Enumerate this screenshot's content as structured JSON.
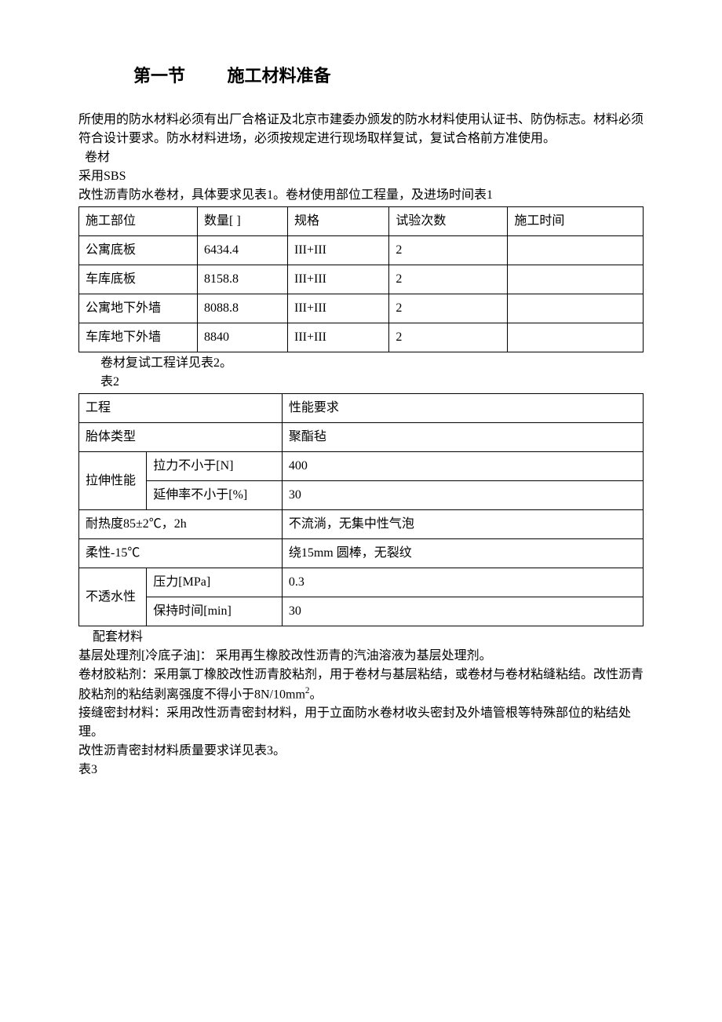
{
  "title_section": "第一节",
  "title_text": "施工材料准备",
  "intro": "所使用的防水材料必须有出厂合格证及北京市建委办颁发的防水材料使用认证书、防伪标志。材料必须符合设计要求。防水材料进场，必须按规定进行现场取样复试，复试合格前方准使用。",
  "label_juancai": "卷材",
  "label_sbs": "采用SBS",
  "label_sbs_desc": "改性沥青防水卷材，具体要求见表1。卷材使用部位工程量，及进场时间表1",
  "table1": {
    "headers": [
      "施工部位",
      "数量[   ]",
      "规格",
      "试验次数",
      "施工时间"
    ],
    "rows": [
      [
        "公寓底板",
        "6434.4",
        "III+III",
        "2",
        ""
      ],
      [
        "车库底板",
        "8158.8",
        "III+III",
        "2",
        ""
      ],
      [
        "公寓地下外墙",
        "8088.8",
        "III+III",
        "2",
        ""
      ],
      [
        "车库地下外墙",
        "8840",
        "III+III",
        "2",
        ""
      ]
    ],
    "col_widths": [
      "21%",
      "16%",
      "18%",
      "21%",
      "24%"
    ]
  },
  "after_t1_line1": "卷材复试工程详见表2。",
  "after_t1_line2": "表2",
  "table2": {
    "col_widths": [
      "12%",
      "24%",
      "64%"
    ],
    "r1c1": "工程",
    "r1c2": "性能要求",
    "r2c1": "胎体类型",
    "r2c2": "聚酯毡",
    "r3c1": "拉伸性能",
    "r3c2": "拉力不小于[N]",
    "r3c3": "400",
    "r4c2": "延伸率不小于[%]",
    "r4c3": "30",
    "r5c1": "耐热度85±2℃，2h",
    "r5c2": "不流淌，无集中性气泡",
    "r6c1": "柔性-15℃",
    "r6c2": "绕15mm 圆棒，无裂纹",
    "r7c1": "不透水性",
    "r7c2": "压力[MPa]",
    "r7c3": "0.3",
    "r8c2": "保持时间[min]",
    "r8c3": "30"
  },
  "after_t2": {
    "l1": "配套材料",
    "l2": "基层处理剂[冷底子油]： 采用再生橡胶改性沥青的汽油溶液为基层处理剂。",
    "l3a": "卷材胶粘剂：采用氯丁橡胶改性沥青胶粘剂，用于卷材与基层粘结，或卷材与卷材粘缝粘结。改性沥青胶粘剂的粘结剥离强度不得小于8N/10mm",
    "l3b": "2",
    "l3c": "。",
    "l4": "接缝密封材料：采用改性沥青密封材料，用于立面防水卷材收头密封及外墙管根等特殊部位的粘结处理。",
    "l5": "改性沥青密封材料质量要求详见表3。",
    "l6": "表3"
  }
}
